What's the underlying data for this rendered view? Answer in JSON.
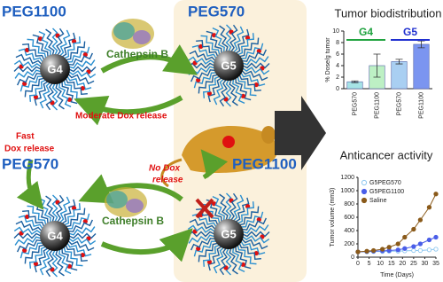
{
  "diagram": {
    "top_left_peg": "PEG1100",
    "top_mid_peg": "PEG570",
    "bottom_left_peg": "PEG570",
    "bottom_mid_peg": "PEG1100",
    "dendrimers": [
      "G4",
      "G5",
      "G4",
      "G5"
    ],
    "enzyme_top": "Cathepsin B",
    "enzyme_bottom": "Cathepsin B",
    "moderate_release": "Moderate Dox release",
    "fast_release_1": "Fast",
    "fast_release_2": "Dox release",
    "no_release_1": "No Dox",
    "no_release_2": "release"
  },
  "chart_data": [
    {
      "type": "bar",
      "title": "Tumor biodistribution",
      "y_label": "% Dose/g tumor",
      "categories": [
        "PEG570",
        "PEG1100",
        "PEG570",
        "PEG1100"
      ],
      "values": [
        1.2,
        4.0,
        4.7,
        7.7
      ],
      "errors": [
        0.15,
        2.0,
        0.4,
        0.6
      ],
      "colors": [
        "#a6e3e6",
        "#bdf0c4",
        "#a9cff2",
        "#7b95f0"
      ],
      "groups": [
        {
          "name": "G4",
          "color": "#21a340"
        },
        {
          "name": "G5",
          "color": "#2030d0"
        }
      ],
      "ylim": [
        0,
        10
      ],
      "yticks": [
        0,
        2,
        4,
        6,
        8,
        10
      ]
    },
    {
      "type": "line",
      "title": "Anticancer activity",
      "y_label": "Tumor volume (mm3)",
      "x_label": "Time (Days)",
      "x": [
        0,
        4,
        7,
        11,
        14,
        18,
        21,
        25,
        28,
        32,
        35
      ],
      "series": [
        {
          "name": "G5PEG570",
          "color": "#8fc8f0",
          "values": [
            80,
            80,
            85,
            85,
            90,
            90,
            95,
            100,
            100,
            110,
            120
          ]
        },
        {
          "name": "G5PEG1100",
          "color": "#4a5ee8",
          "values": [
            80,
            85,
            90,
            95,
            100,
            110,
            130,
            160,
            200,
            260,
            300
          ]
        },
        {
          "name": "Saline",
          "color": "#8a5a1a",
          "values": [
            80,
            90,
            100,
            120,
            150,
            200,
            300,
            420,
            560,
            750,
            950
          ]
        }
      ],
      "xlim": [
        0,
        35
      ],
      "xticks": [
        0,
        5,
        10,
        15,
        20,
        25,
        30,
        35
      ],
      "ylim": [
        0,
        1200
      ],
      "yticks": [
        0,
        200,
        400,
        600,
        800,
        1000,
        1200
      ]
    }
  ]
}
